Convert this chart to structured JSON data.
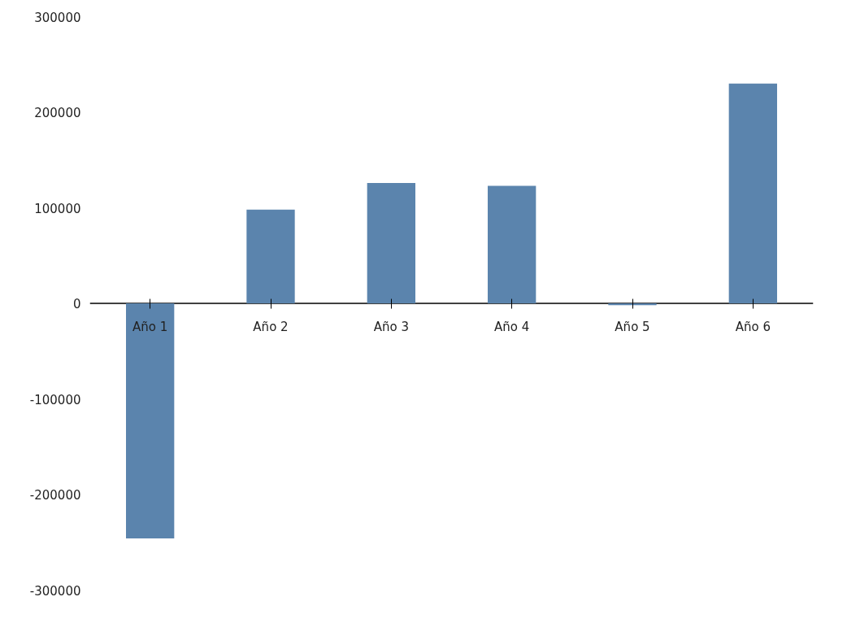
{
  "chart_data": {
    "type": "bar",
    "categories": [
      "Año 1",
      "Año 2",
      "Año 3",
      "Año 4",
      "Año 5",
      "Año 6"
    ],
    "values": [
      -246000,
      98000,
      126000,
      123000,
      -2000,
      230000
    ],
    "color": "#5b84ad",
    "ylim": [
      -300000,
      300000
    ],
    "yticks": [
      -300000,
      -200000,
      -100000,
      0,
      100000,
      200000,
      300000
    ],
    "grid": false
  }
}
